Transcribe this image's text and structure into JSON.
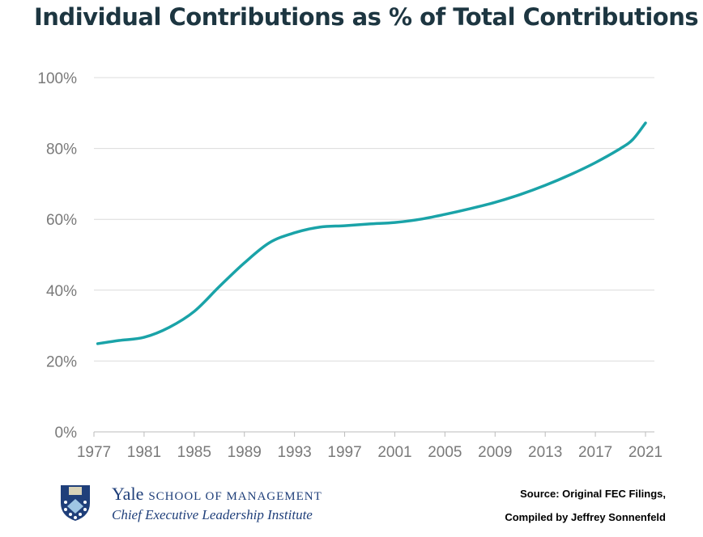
{
  "chart_data": {
    "type": "line",
    "title": "Individual Contributions as % of Total Contributions",
    "xlabel": "",
    "ylabel": "",
    "x_ticks": [
      "1977",
      "1981",
      "1985",
      "1989",
      "1993",
      "1997",
      "2001",
      "2005",
      "2009",
      "2013",
      "2017",
      "2021"
    ],
    "y_ticks": [
      "0%",
      "20%",
      "40%",
      "60%",
      "80%",
      "100%"
    ],
    "ylim": [
      0,
      100
    ],
    "xlim": [
      1977,
      2021
    ],
    "grid": true,
    "color": "#1aa3a8",
    "x": [
      1977.3,
      1979,
      1981,
      1983,
      1985,
      1987,
      1989,
      1991,
      1993,
      1995,
      1997,
      1999,
      2001,
      2003,
      2005,
      2007,
      2009,
      2011,
      2013,
      2015,
      2017,
      2019,
      2020,
      2021
    ],
    "values": [
      24.9,
      25.8,
      26.7,
      29.5,
      34,
      41,
      47.7,
      53.4,
      56.2,
      57.8,
      58.2,
      58.7,
      59.1,
      60,
      61.4,
      63,
      64.8,
      67,
      69.6,
      72.6,
      76,
      80,
      82.6,
      87.2
    ]
  },
  "footer": {
    "logo_yale": "Yale",
    "logo_school": "SCHOOL OF MANAGEMENT",
    "logo_institute": "Chief Executive Leadership Institute",
    "source_line1": "Source: Original FEC Filings,",
    "source_line2": "Compiled by Jeffrey Sonnenfeld"
  }
}
